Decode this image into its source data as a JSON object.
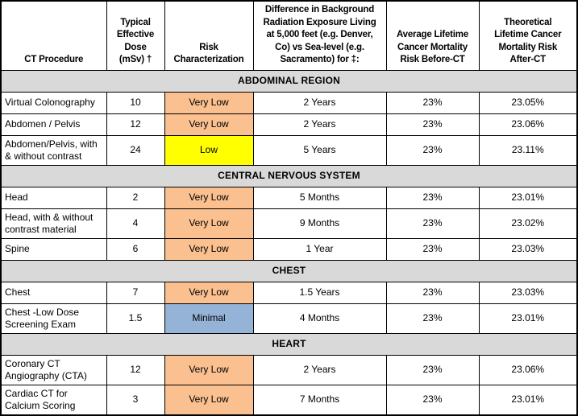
{
  "table": {
    "columns": [
      {
        "label": "CT Procedure"
      },
      {
        "label": "Typical\nEffective\nDose\n(mSv) †"
      },
      {
        "label": "Risk\nCharacterization"
      },
      {
        "label": "Difference in Background\nRadiation Exposure Living\nat 5,000 feet (e.g. Denver,\nCo) vs  Sea-level (e.g.\nSacramento) for ‡:"
      },
      {
        "label": "Average Lifetime\nCancer Mortality\nRisk Before-CT"
      },
      {
        "label": "Theoretical\nLifetime Cancer\nMortality Risk\nAfter-CT"
      }
    ],
    "risk_colors": {
      "Very Low": "#FAC090",
      "Low": "#FFFF00",
      "Minimal": "#95B3D7"
    },
    "section_background": "#D9D9D9",
    "sections": [
      {
        "title": "ABDOMINAL REGION",
        "rows": [
          {
            "procedure": "Virtual Colonography",
            "dose": "10",
            "risk": "Very Low",
            "background_difference": "2 Years",
            "risk_before": "23%",
            "risk_after": "23.05%"
          },
          {
            "procedure": "Abdomen / Pelvis",
            "dose": "12",
            "risk": "Very Low",
            "background_difference": "2 Years",
            "risk_before": "23%",
            "risk_after": "23.06%"
          },
          {
            "procedure": "Abdomen/Pelvis, with & without contrast",
            "dose": "24",
            "risk": "Low",
            "background_difference": "5 Years",
            "risk_before": "23%",
            "risk_after": "23.11%"
          }
        ]
      },
      {
        "title": "CENTRAL NERVOUS SYSTEM",
        "rows": [
          {
            "procedure": "Head",
            "dose": "2",
            "risk": "Very Low",
            "background_difference": "5 Months",
            "risk_before": "23%",
            "risk_after": "23.01%"
          },
          {
            "procedure": "Head, with & without contrast material",
            "dose": "4",
            "risk": "Very Low",
            "background_difference": "9 Months",
            "risk_before": "23%",
            "risk_after": "23.02%"
          },
          {
            "procedure": "Spine",
            "dose": "6",
            "risk": "Very Low",
            "background_difference": "1 Year",
            "risk_before": "23%",
            "risk_after": "23.03%"
          }
        ]
      },
      {
        "title": "CHEST",
        "rows": [
          {
            "procedure": "Chest",
            "dose": "7",
            "risk": "Very Low",
            "background_difference": "1.5 Years",
            "risk_before": "23%",
            "risk_after": "23.03%"
          },
          {
            "procedure": "Chest -Low Dose Screening Exam",
            "dose": "1.5",
            "risk": "Minimal",
            "background_difference": "4 Months",
            "risk_before": "23%",
            "risk_after": "23.01%"
          }
        ]
      },
      {
        "title": "HEART",
        "rows": [
          {
            "procedure": "Coronary CT Angiography (CTA)",
            "dose": "12",
            "risk": "Very Low",
            "background_difference": "2 Years",
            "risk_before": "23%",
            "risk_after": "23.06%"
          },
          {
            "procedure": "Cardiac CT for Calcium Scoring",
            "dose": "3",
            "risk": "Very Low",
            "background_difference": "7 Months",
            "risk_before": "23%",
            "risk_after": "23.01%"
          }
        ]
      }
    ]
  }
}
